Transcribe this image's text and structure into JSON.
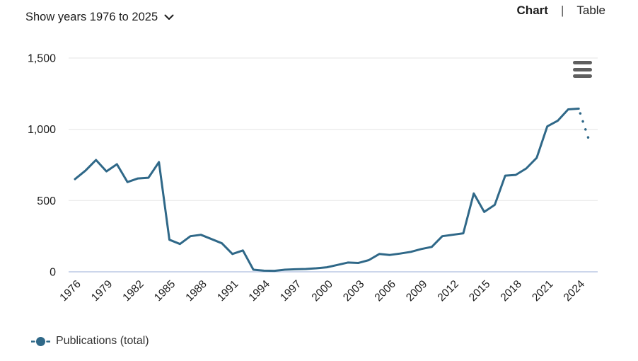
{
  "header": {
    "year_selector": {
      "label": "Show years 1976 to 2025",
      "icon": "chevron-down"
    },
    "view_toggle": {
      "chart_label": "Chart",
      "separator": "|",
      "table_label": "Table",
      "active_tab": "Chart"
    }
  },
  "chart": {
    "menu_icon": "hamburger-menu"
  },
  "legend": {
    "items": [
      {
        "label": "Publications (total)",
        "marker": "line-circle",
        "color": "#2f6888"
      }
    ]
  },
  "chart_data": {
    "type": "line",
    "title": "",
    "xlabel": "",
    "ylabel": "",
    "ylim": [
      0,
      1500
    ],
    "grid": true,
    "legend_position": "bottom-left",
    "x": [
      1976,
      1977,
      1978,
      1979,
      1980,
      1981,
      1982,
      1983,
      1984,
      1985,
      1986,
      1987,
      1988,
      1989,
      1990,
      1991,
      1992,
      1993,
      1994,
      1995,
      1996,
      1997,
      1998,
      1999,
      2000,
      2001,
      2002,
      2003,
      2004,
      2005,
      2006,
      2007,
      2008,
      2009,
      2010,
      2011,
      2012,
      2013,
      2014,
      2015,
      2016,
      2017,
      2018,
      2019,
      2020,
      2021,
      2022,
      2023,
      2024,
      2025
    ],
    "series": [
      {
        "name": "Publications (total)",
        "values": [
          650,
          710,
          785,
          705,
          755,
          630,
          655,
          660,
          770,
          225,
          195,
          250,
          260,
          230,
          200,
          125,
          150,
          15,
          8,
          7,
          15,
          18,
          20,
          25,
          32,
          48,
          65,
          62,
          82,
          125,
          118,
          128,
          140,
          160,
          175,
          250,
          260,
          270,
          550,
          420,
          470,
          675,
          680,
          725,
          800,
          1020,
          1060,
          1140,
          1145,
          920
        ],
        "last_segment_style": "dotted-projection"
      }
    ],
    "x_ticks": [
      1976,
      1979,
      1982,
      1985,
      1988,
      1991,
      1994,
      1997,
      2000,
      2003,
      2006,
      2009,
      2012,
      2015,
      2018,
      2021,
      2024
    ],
    "y_ticks": [
      {
        "value": 0,
        "label": "0"
      },
      {
        "value": 500,
        "label": "500"
      },
      {
        "value": 1000,
        "label": "1,000"
      },
      {
        "value": 1500,
        "label": "1,500"
      }
    ],
    "colors": {
      "line": "#2f6888",
      "gridline": "#e6e6e6",
      "axis_line": "#ccd6eb",
      "tick_label": "#1c1c1c"
    }
  }
}
